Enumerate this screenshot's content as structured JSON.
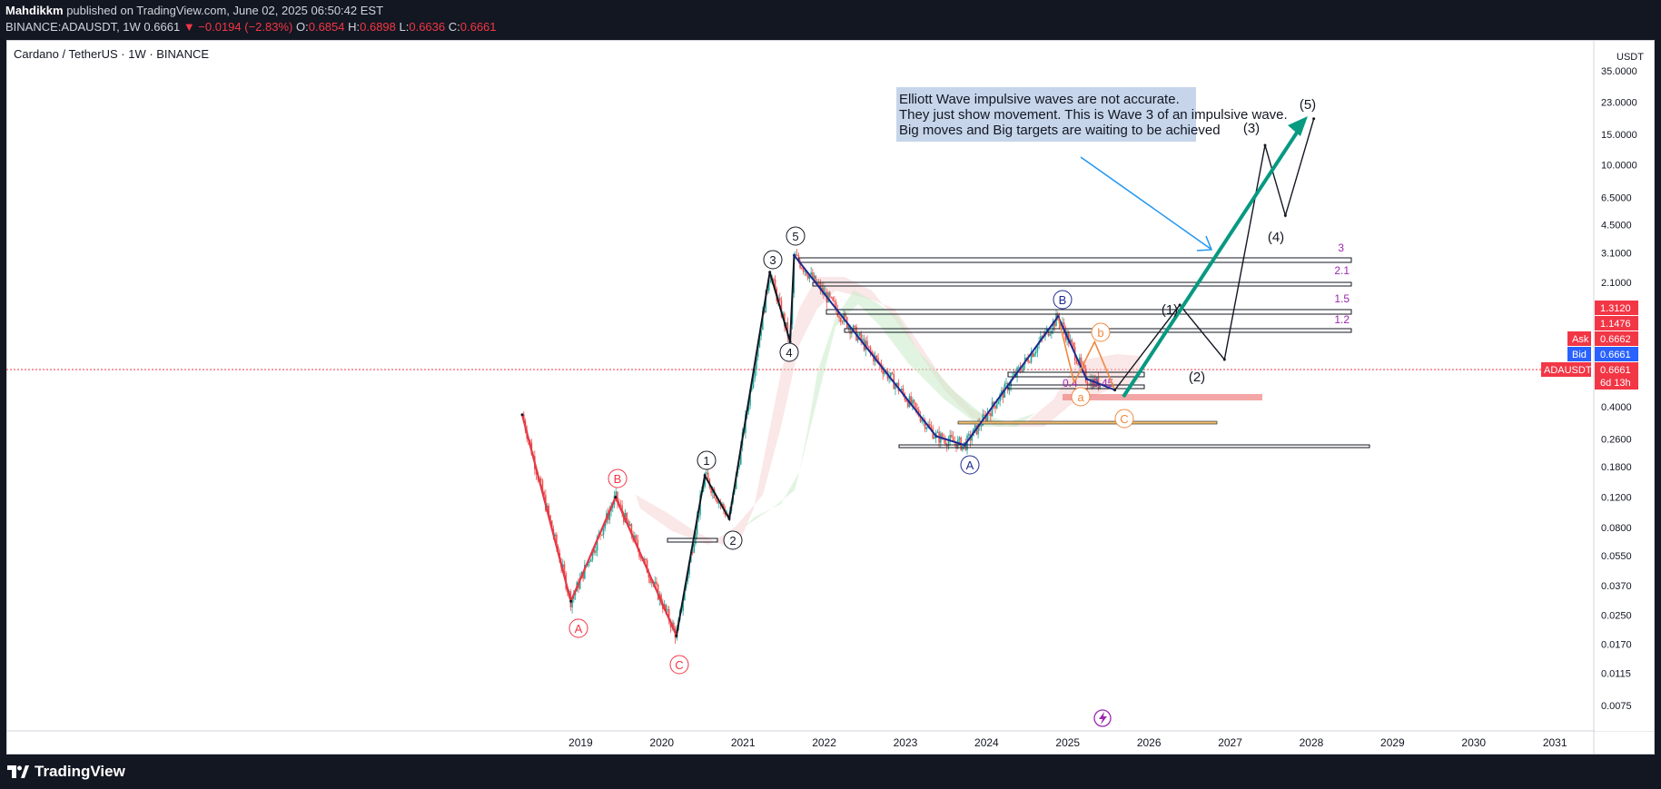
{
  "header": {
    "publisher": "Mahdikkm",
    "published_text": " published on TradingView.com, June 02, 2025 06:50:42 EST",
    "symbol_line": "BINANCE:ADAUSDT, 1W  0.6661",
    "change_text": "▼ −0.0194 (−2.83%)",
    "o_label": "O:",
    "o_value": "0.6854",
    "h_label": "H:",
    "h_value": "0.6898",
    "l_label": "L:",
    "l_value": "0.6636",
    "c_label": "C:",
    "c_value": "0.6661"
  },
  "chart_title": "Cardano / TetherUS · 1W · BINANCE",
  "footer": {
    "brand": "TradingView"
  },
  "price_scale": {
    "currency": "USDT",
    "ticks": [
      "35.0000",
      "23.0000",
      "15.0000",
      "10.0000",
      "6.5000",
      "4.5000",
      "3.1000",
      "2.1000",
      "1.3120",
      "1.1476",
      "0.6662",
      "0.6661",
      "0.4000",
      "0.2600",
      "0.1800",
      "0.1200",
      "0.0800",
      "0.0550",
      "0.0370",
      "0.0250",
      "0.0170",
      "0.0115",
      "0.0075"
    ],
    "badges": {
      "b1": "1.3120",
      "b2": "1.1476",
      "ask_label": "Ask",
      "ask_value": "0.6662",
      "bid_label": "Bid",
      "bid_value": "0.6661",
      "sym_label": "ADAUSDT",
      "last_value": "0.6661",
      "countdown": "6d 13h"
    }
  },
  "time_axis": [
    "2019",
    "2020",
    "2021",
    "2022",
    "2023",
    "2024",
    "2025",
    "2026",
    "2027",
    "2028",
    "2029",
    "2030",
    "2031"
  ],
  "annotation": {
    "line1": " Elliott Wave impulsive waves are not accurate.",
    "line2": "They just show movement. This is Wave 3 of an impulsive wave.",
    "line3": "Big moves and Big targets are waiting to be achieved"
  },
  "wave_labels": {
    "A_red": "A",
    "B_red": "B",
    "C_red": "C",
    "w1": "1",
    "w2": "2",
    "w3": "3",
    "w4": "4",
    "w5": "5",
    "A_blue": "A",
    "B_blue": "B",
    "a_orange": "a",
    "b_orange": "b",
    "c_orange": "C",
    "p1": "(1)",
    "p2": "(2)",
    "p3": "(3)",
    "p4": "(4)",
    "p5": "(5)"
  },
  "fib_labels": {
    "f3": "3",
    "f21": "2.1",
    "f15": "1.5",
    "f12": "1.2",
    "f04": "0.4",
    "f045": "0.45"
  },
  "colors": {
    "up": "#26a69a",
    "down": "#ef5350",
    "wave_red": "#f23645",
    "wave_blue": "#1e2a8f",
    "projection": "#089981",
    "arrow": "#2196f3",
    "fib_purple": "#9c27b0",
    "box_fill": "#c6d5ea"
  },
  "chart_data": {
    "type": "line",
    "title": "Cardano / TetherUS · 1W · BINANCE",
    "y_scale": "log",
    "ylim": [
      0.0065,
      38
    ],
    "xlim": [
      2018.25,
      2031.5
    ],
    "series": [
      {
        "x": [
          2018.3,
          2018.9,
          2019.45,
          2020.2,
          2020.55,
          2020.85,
          2021.35,
          2021.6,
          2021.65
        ],
        "values": [
          0.36,
          0.03,
          0.12,
          0.019,
          0.16,
          0.09,
          2.4,
          0.95,
          3.0
        ]
      },
      {
        "x": [
          2021.65,
          2023.4,
          2023.75,
          2024.9,
          2025.25,
          2025.6
        ],
        "values": [
          3.0,
          0.27,
          0.24,
          1.33,
          0.58,
          0.5
        ]
      },
      {
        "x": [
          2025.6,
          2026.4,
          2026.95,
          2027.45,
          2027.7,
          2028.05
        ],
        "values": [
          0.5,
          1.55,
          0.75,
          13.0,
          5.1,
          18.5
        ]
      }
    ],
    "fib_levels": [
      {
        "label": "3",
        "value": 3.0
      },
      {
        "label": "2.1",
        "value": 2.1
      },
      {
        "label": "1.5",
        "value": 1.5
      },
      {
        "label": "1.2",
        "value": 1.2
      }
    ],
    "grid": false
  }
}
